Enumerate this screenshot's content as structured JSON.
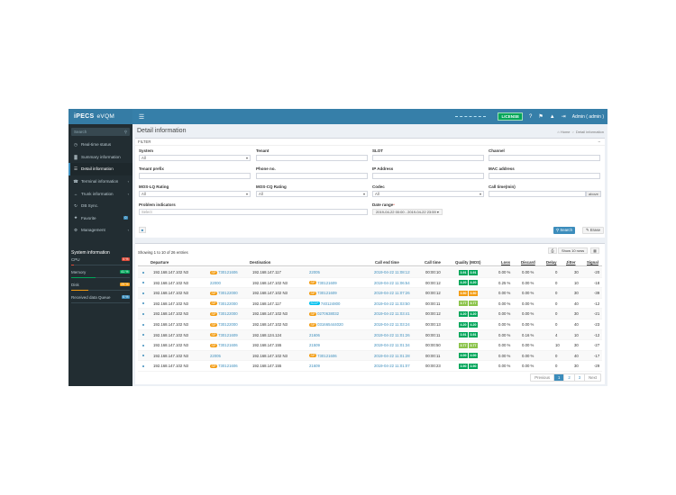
{
  "brand": {
    "name": "iPECS",
    "product": "eVQM"
  },
  "topbar": {
    "license_label": "LICENSE",
    "user_label": "Admin ( admin )",
    "icons": [
      "question-icon",
      "bell-icon",
      "upload-icon",
      "logout-icon"
    ]
  },
  "sidebar": {
    "search_placeholder": "Search",
    "items": [
      {
        "label": "Real-time status",
        "icon": "dashboard-icon",
        "active": false,
        "arrow": false
      },
      {
        "label": "Summary information",
        "icon": "chart-icon",
        "active": false,
        "arrow": false
      },
      {
        "label": "Detail information",
        "icon": "list-icon",
        "active": true,
        "arrow": false
      },
      {
        "label": "Terminal information",
        "icon": "phone-icon",
        "active": false,
        "arrow": true
      },
      {
        "label": "Trunk information",
        "icon": "trunk-icon",
        "active": false,
        "arrow": true
      },
      {
        "label": "DB Sync.",
        "icon": "sync-icon",
        "active": false,
        "arrow": false
      },
      {
        "label": "Favorite",
        "icon": "star-icon",
        "active": false,
        "badge": "0"
      },
      {
        "label": "Management",
        "icon": "gear-icon",
        "active": false,
        "arrow": true
      }
    ],
    "system_title": "System information",
    "system": [
      {
        "label": "CPU",
        "percent_text": "4 %",
        "value": 4,
        "color": "#dd4b39"
      },
      {
        "label": "Memory",
        "percent_text": "41 %",
        "value": 41,
        "color": "#00a65a"
      },
      {
        "label": "Disk",
        "percent_text": "29 %",
        "value": 29,
        "color": "#f39c12"
      },
      {
        "label": "Received data Queue",
        "percent_text": "0 %",
        "value": 0,
        "color": "#3c8dbc"
      }
    ]
  },
  "page": {
    "title": "Detail information",
    "breadcrumb_home": "Home",
    "breadcrumb_current": "Detail information"
  },
  "filter": {
    "header": "FILTER",
    "system_label": "System",
    "system_value": "All",
    "tenant_label": "Tenant",
    "slot_label": "SLOT",
    "channel_label": "Channel",
    "tenant_prefix_label": "Tenant prefix",
    "phone_label": "Phone no.",
    "ip_label": "IP Address",
    "mac_label": "MAC address",
    "moslq_label": "MOS-LQ Rating",
    "moslq_value": "All",
    "moscq_label": "MOS-CQ Rating",
    "moscq_value": "All",
    "codec_label": "Codec",
    "codec_value": "All",
    "calltime_label": "Call time(min)",
    "calltime_suffix": "above",
    "problem_label": "Problem indicators",
    "problem_placeholder": "Select",
    "date_label": "Date range",
    "date_value": "2019-04-22 00:00 - 2019-04-22 23:59",
    "search_label": "Search",
    "erase_label": "Erase"
  },
  "table": {
    "showing": "Showing 1 to 10 of 26 entries",
    "rows_btn": "Show 10 rows",
    "headers": {
      "departure": "Departure",
      "destination": "Destination",
      "end_time": "Call end time",
      "call_time": "Call time",
      "quality": "Quality (MOS)",
      "loss": "Loss",
      "discard": "Discard",
      "delay": "Delay",
      "jitter": "Jitter",
      "signal": "Signal"
    },
    "rows": [
      {
        "dep_ip": "192.168.147.102 N3",
        "dep_tag": "SIP",
        "dep_num": "730121606",
        "dst_ip": "192.168.147.117",
        "dst_tag": "",
        "dst_num": "22005",
        "end": "2019-04-22 11:08:12",
        "dur": "00:00:10",
        "lq": "3.91",
        "cq": "3.91",
        "lq_c": "#00a65a",
        "cq_c": "#00a65a",
        "loss": "0.00 %",
        "discard": "0.00 %",
        "delay": "0",
        "jitter": "30",
        "signal": "-20"
      },
      {
        "dep_ip": "192.168.147.102 N3",
        "dep_tag": "",
        "dep_num": "22000",
        "dst_ip": "192.168.147.102 N3",
        "dst_tag": "SIP",
        "dst_num": "730121609",
        "end": "2019-04-22 11:06:54",
        "dur": "00:00:12",
        "lq": "4.20",
        "cq": "4.20",
        "lq_c": "#00a65a",
        "cq_c": "#00a65a",
        "loss": "0.25 %",
        "discard": "0.00 %",
        "delay": "0",
        "jitter": "10",
        "signal": "-18"
      },
      {
        "dep_ip": "192.168.147.102 N3",
        "dep_tag": "SIP",
        "dep_num": "730122000",
        "dst_ip": "192.168.147.102 N3",
        "dst_tag": "SIP",
        "dst_num": "730121609",
        "end": "2019-04-22 11:07:26",
        "dur": "00:00:12",
        "lq": "3.50",
        "cq": "3.50",
        "lq_c": "#f39c12",
        "cq_c": "#f39c12",
        "loss": "0.00 %",
        "discard": "0.00 %",
        "delay": "0",
        "jitter": "30",
        "signal": "-39"
      },
      {
        "dep_ip": "192.168.147.102 N3",
        "dep_tag": "SIP",
        "dep_num": "730122000",
        "dst_ip": "192.168.147.117",
        "dst_tag": "SCCP",
        "dst_num": "740124800",
        "end": "2019-04-22 11:03:50",
        "dur": "00:00:11",
        "lq": "3.77",
        "cq": "3.77",
        "lq_c": "#8bc34a",
        "cq_c": "#8bc34a",
        "loss": "0.00 %",
        "discard": "0.00 %",
        "delay": "0",
        "jitter": "40",
        "signal": "-12"
      },
      {
        "dep_ip": "192.168.147.102 N3",
        "dep_tag": "SIP",
        "dep_num": "730122000",
        "dst_ip": "192.168.147.102 N3",
        "dst_tag": "SIP",
        "dst_num": "0270638032",
        "end": "2019-04-22 11:03:41",
        "dur": "00:00:12",
        "lq": "4.20",
        "cq": "4.20",
        "lq_c": "#00a65a",
        "cq_c": "#00a65a",
        "loss": "0.00 %",
        "discard": "0.00 %",
        "delay": "0",
        "jitter": "30",
        "signal": "-21"
      },
      {
        "dep_ip": "192.168.147.102 N3",
        "dep_tag": "SIP",
        "dep_num": "730122000",
        "dst_ip": "192.168.147.102 N3",
        "dst_tag": "SIP",
        "dst_num": "031665444020",
        "end": "2019-04-22 11:03:24",
        "dur": "00:00:13",
        "lq": "4.20",
        "cq": "4.20",
        "lq_c": "#00a65a",
        "cq_c": "#00a65a",
        "loss": "0.00 %",
        "discard": "0.00 %",
        "delay": "0",
        "jitter": "40",
        "signal": "-23"
      },
      {
        "dep_ip": "192.168.147.102 N3",
        "dep_tag": "SIP",
        "dep_num": "730121609",
        "dst_ip": "192.168.124.124",
        "dst_tag": "",
        "dst_num": "21606",
        "end": "2019-04-22 11:01:26",
        "dur": "00:00:11",
        "lq": "3.91",
        "cq": "3.91",
        "lq_c": "#00a65a",
        "cq_c": "#00a65a",
        "loss": "0.00 %",
        "discard": "0.16 %",
        "delay": "4",
        "jitter": "10",
        "signal": "-12"
      },
      {
        "dep_ip": "192.168.147.102 N3",
        "dep_tag": "SIP",
        "dep_num": "730121606",
        "dst_ip": "192.168.147.155",
        "dst_tag": "",
        "dst_num": "21509",
        "end": "2019-04-22 11:01:34",
        "dur": "00:00:50",
        "lq": "3.77",
        "cq": "3.77",
        "lq_c": "#8bc34a",
        "cq_c": "#8bc34a",
        "loss": "0.00 %",
        "discard": "0.00 %",
        "delay": "10",
        "jitter": "30",
        "signal": "-27"
      },
      {
        "dep_ip": "192.168.147.102 N3",
        "dep_tag": "",
        "dep_num": "22005",
        "dst_ip": "192.168.147.102 N3",
        "dst_tag": "SIP",
        "dst_num": "730121606",
        "end": "2019-04-22 11:01:28",
        "dur": "00:00:11",
        "lq": "4.00",
        "cq": "4.00",
        "lq_c": "#00a65a",
        "cq_c": "#00a65a",
        "loss": "0.00 %",
        "discard": "0.00 %",
        "delay": "0",
        "jitter": "40",
        "signal": "-17"
      },
      {
        "dep_ip": "192.168.147.102 N3",
        "dep_tag": "SIP",
        "dep_num": "730121606",
        "dst_ip": "192.168.147.155",
        "dst_tag": "",
        "dst_num": "21609",
        "end": "2019-04-22 11:01:07",
        "dur": "00:00:23",
        "lq": "3.90",
        "cq": "3.90",
        "lq_c": "#00a65a",
        "cq_c": "#00a65a",
        "loss": "0.00 %",
        "discard": "0.00 %",
        "delay": "0",
        "jitter": "30",
        "signal": "-29"
      }
    ],
    "tag_colors": {
      "SIP": "#f39c12",
      "SCCP": "#00c0ef"
    }
  },
  "pagination": {
    "previous": "Previous",
    "pages": [
      "1",
      "2",
      "3"
    ],
    "current": "1",
    "next": "Next"
  }
}
